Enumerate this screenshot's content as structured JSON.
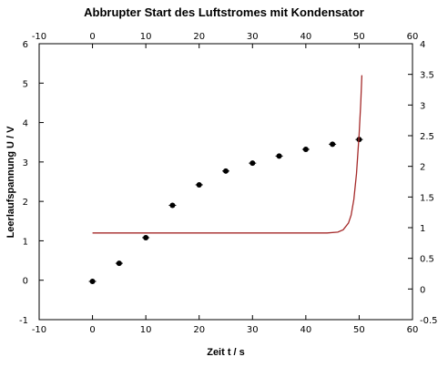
{
  "chart_data": {
    "type": "scatter",
    "title": "Abbrupter Start des Luftstromes mit Kondensator",
    "xlabel": "Zeit t / s",
    "ylabel": "Leerlaufspannung U / V",
    "xlim": [
      -10,
      60
    ],
    "ylim_left": [
      -1,
      6
    ],
    "ylim_right": [
      -0.5,
      4
    ],
    "x_ticks": [
      "-10",
      "0",
      "10",
      "20",
      "30",
      "40",
      "50",
      "60"
    ],
    "y_ticks_left": [
      "-1",
      "0",
      "1",
      "2",
      "3",
      "4",
      "5",
      "6"
    ],
    "y_ticks_right": [
      "-0.5",
      "0",
      "0.5",
      "1",
      "1.5",
      "2",
      "2.5",
      "3",
      "3.5",
      "4"
    ],
    "grid": false,
    "series": [
      {
        "kind": "scatter",
        "axis": "left",
        "color": "#000000",
        "x": [
          0,
          5,
          10,
          15,
          20,
          25,
          30,
          35,
          40,
          45,
          50
        ],
        "y": [
          -0.03,
          0.43,
          1.08,
          1.9,
          2.42,
          2.77,
          2.97,
          3.15,
          3.32,
          3.45,
          3.57
        ]
      },
      {
        "kind": "line",
        "axis": "left",
        "color": "#a52a2a",
        "x": [
          0,
          10,
          20,
          30,
          40,
          44,
          46,
          47,
          48,
          48.5,
          49,
          49.5,
          50,
          50.3,
          50.5
        ],
        "y": [
          1.2,
          1.2,
          1.2,
          1.2,
          1.2,
          1.2,
          1.22,
          1.28,
          1.45,
          1.65,
          2.05,
          2.7,
          3.7,
          4.5,
          5.2
        ]
      }
    ]
  }
}
